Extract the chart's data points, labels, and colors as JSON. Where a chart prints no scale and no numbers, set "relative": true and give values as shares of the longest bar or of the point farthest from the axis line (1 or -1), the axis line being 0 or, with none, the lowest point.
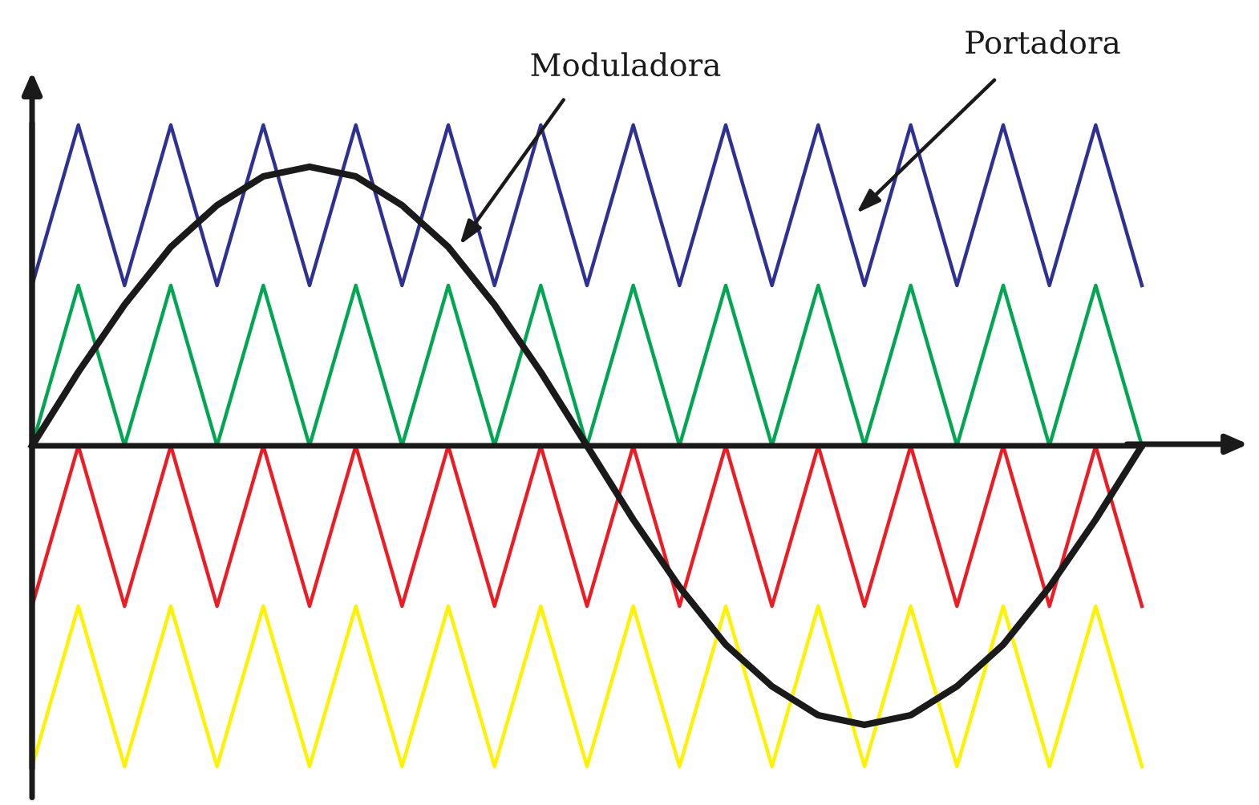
{
  "chart_data": {
    "type": "line",
    "relative": true,
    "categories": [
      null,
      null,
      null,
      null,
      null,
      null,
      null,
      null,
      null,
      null,
      null,
      null,
      null,
      null,
      null,
      null,
      null,
      null,
      null,
      null,
      null,
      null,
      null,
      null,
      null
    ],
    "series": [
      {
        "color": "#2e3192",
        "values": [
          0.5,
          1,
          0.5,
          1,
          0.5,
          1,
          0.5,
          1,
          0.5,
          1,
          0.5,
          1,
          0.5,
          1,
          0.5,
          1,
          0.5,
          1,
          0.5,
          1,
          0.5,
          1,
          0.5,
          1,
          0.5
        ]
      },
      {
        "color": "#00a651",
        "values": [
          0,
          0.5,
          0,
          0.5,
          0,
          0.5,
          0,
          0.5,
          0,
          0.5,
          0,
          0.5,
          0,
          0.5,
          0,
          0.5,
          0,
          0.5,
          0,
          0.5,
          0,
          0.5,
          0,
          0.5,
          0
        ]
      },
      {
        "color": "#ed1c24",
        "values": [
          -0.5,
          0,
          -0.5,
          0,
          -0.5,
          0,
          -0.5,
          0,
          -0.5,
          0,
          -0.5,
          0,
          -0.5,
          0,
          -0.5,
          0,
          -0.5,
          0,
          -0.5,
          0,
          -0.5,
          0,
          -0.5,
          0,
          -0.5
        ]
      },
      {
        "color": "#fff200",
        "values": [
          -1,
          -0.5,
          -1,
          -0.5,
          -1,
          -0.5,
          -1,
          -0.5,
          -1,
          -0.5,
          -1,
          -0.5,
          -1,
          -0.5,
          -1,
          -0.5,
          -1,
          -0.5,
          -1,
          -0.5,
          -1,
          -0.5,
          -1,
          -0.5,
          -1
        ]
      },
      {
        "color": "#1a1a1a",
        "values": [
          0,
          0.23,
          0.44,
          0.62,
          0.75,
          0.84,
          0.87,
          0.84,
          0.75,
          0.62,
          0.44,
          0.23,
          0,
          -0.23,
          -0.44,
          -0.62,
          -0.75,
          -0.84,
          -0.87,
          -0.84,
          -0.75,
          -0.62,
          -0.44,
          -0.23,
          0
        ]
      }
    ],
    "annotations": [
      "Moduladora",
      "Portadora"
    ]
  }
}
